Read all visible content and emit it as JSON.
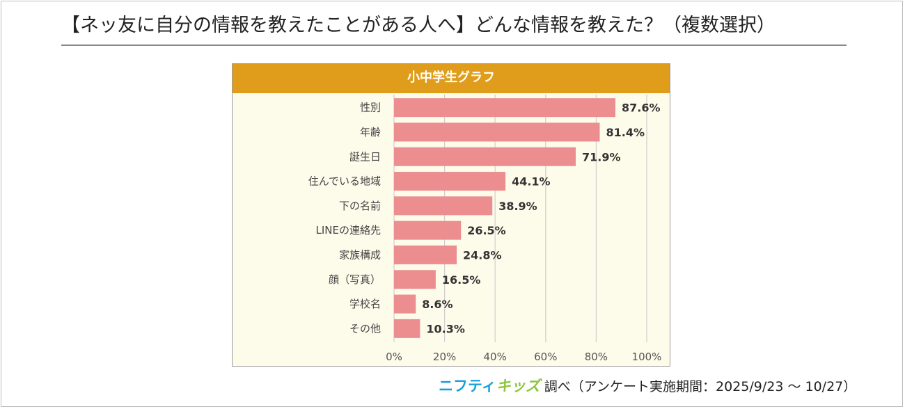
{
  "headline": "【ネッ友に自分の情報を教えたことがある人へ】どんな情報を教えた？（複数選択）",
  "chart_data": {
    "type": "bar",
    "orientation": "horizontal",
    "title": "小中学生グラフ",
    "categories": [
      "性別",
      "年齢",
      "誕生日",
      "住んでいる地域",
      "下の名前",
      "LINEの連絡先",
      "家族構成",
      "顔（写真）",
      "学校名",
      "その他"
    ],
    "values": [
      87.6,
      81.4,
      71.9,
      44.1,
      38.9,
      26.5,
      24.8,
      16.5,
      8.6,
      10.3
    ],
    "value_labels": [
      "87.6%",
      "81.4%",
      "71.9%",
      "44.1%",
      "38.9%",
      "26.5%",
      "24.8%",
      "16.5%",
      "8.6%",
      "10.3%"
    ],
    "xlim": [
      0,
      100
    ],
    "xticks": [
      "0%",
      "20%",
      "40%",
      "60%",
      "80%",
      "100%"
    ],
    "grid": true,
    "colors": {
      "bar": "#ec8e90",
      "title_band": "#e09d1c",
      "plot_bg": "#fdfbea",
      "grid": "#cfcfcf"
    }
  },
  "footer": {
    "brand_part1": "ニフティ",
    "brand_part2": "キッズ",
    "text": "調べ（アンケート実施期間：2025/9/23 〜 10/27）"
  }
}
